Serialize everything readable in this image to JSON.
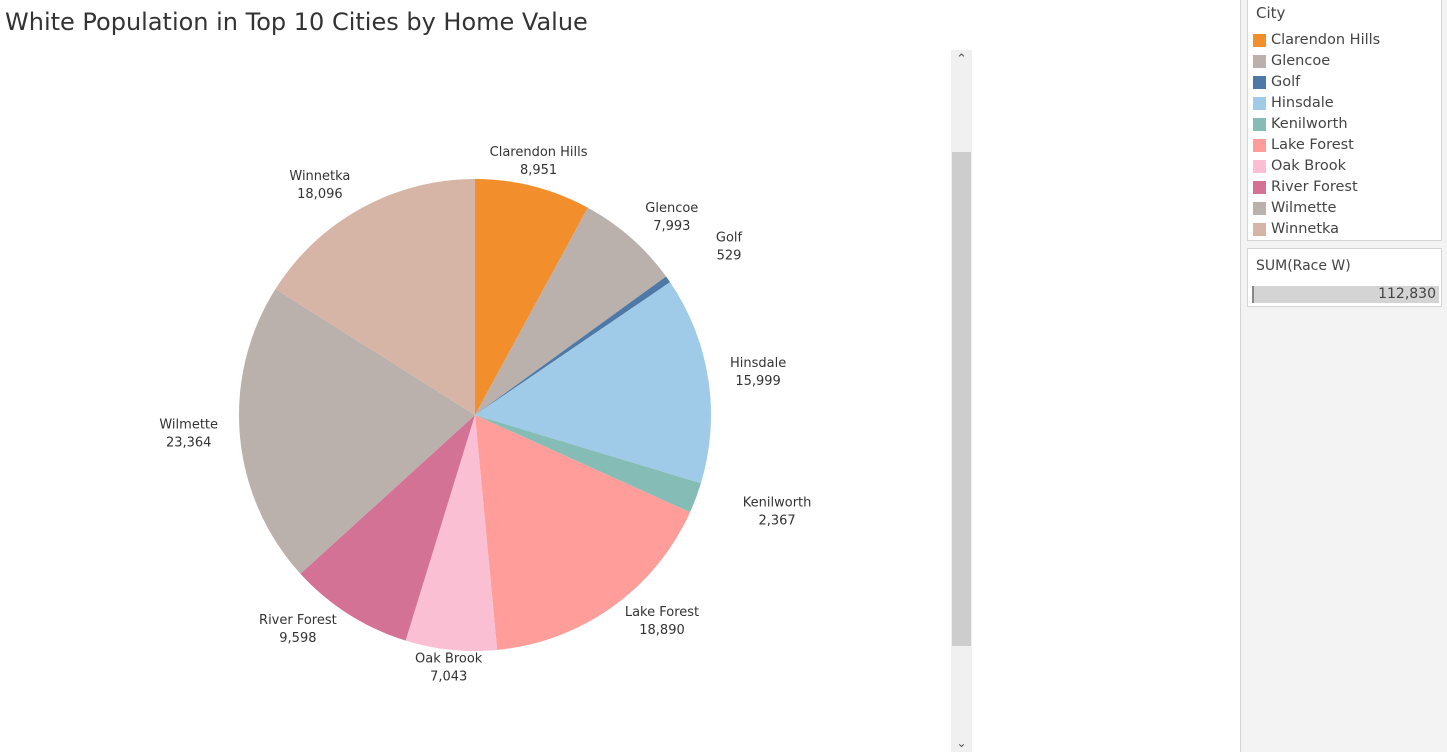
{
  "title": "White Population in Top 10 Cities by Home Value",
  "chart_data": {
    "type": "pie",
    "title": "White Population in Top 10 Cities by Home Value",
    "measure": "SUM(Race W)",
    "slices": [
      {
        "label": "Clarendon Hills",
        "value": 8951,
        "value_label": "8,951",
        "color": "#f28e2b"
      },
      {
        "label": "Glencoe",
        "value": 7993,
        "value_label": "7,993",
        "color": "#bab0ac"
      },
      {
        "label": "Golf",
        "value": 529,
        "value_label": "529",
        "color": "#4e79a7"
      },
      {
        "label": "Hinsdale",
        "value": 15999,
        "value_label": "15,999",
        "color": "#a0cbe8"
      },
      {
        "label": "Kenilworth",
        "value": 2367,
        "value_label": "2,367",
        "color": "#86bcb6"
      },
      {
        "label": "Lake Forest",
        "value": 18890,
        "value_label": "18,890",
        "color": "#ff9d9a"
      },
      {
        "label": "Oak Brook",
        "value": 7043,
        "value_label": "7,043",
        "color": "#fabfd2"
      },
      {
        "label": "River Forest",
        "value": 9598,
        "value_label": "9,598",
        "color": "#d37295"
      },
      {
        "label": "Wilmette",
        "value": 23364,
        "value_label": "23,364",
        "color": "#bab0ac"
      },
      {
        "label": "Winnetka",
        "value": 18096,
        "value_label": "18,096",
        "color": "#d7b5a6"
      }
    ]
  },
  "legend": {
    "title": "City",
    "items": [
      {
        "label": "Clarendon Hills",
        "color": "#f28e2b"
      },
      {
        "label": "Glencoe",
        "color": "#bab0ac"
      },
      {
        "label": "Golf",
        "color": "#4e79a7"
      },
      {
        "label": "Hinsdale",
        "color": "#a0cbe8"
      },
      {
        "label": "Kenilworth",
        "color": "#86bcb6"
      },
      {
        "label": "Lake Forest",
        "color": "#ff9d9a"
      },
      {
        "label": "Oak Brook",
        "color": "#fabfd2"
      },
      {
        "label": "River Forest",
        "color": "#d37295"
      },
      {
        "label": "Wilmette",
        "color": "#bab0ac"
      },
      {
        "label": "Winnetka",
        "color": "#d7b5a6"
      }
    ]
  },
  "size_legend": {
    "title": "SUM(Race W)",
    "value": "112,830"
  },
  "scrollbar": {
    "up_icon": "chevron-up-icon",
    "down_icon": "chevron-down-icon"
  }
}
